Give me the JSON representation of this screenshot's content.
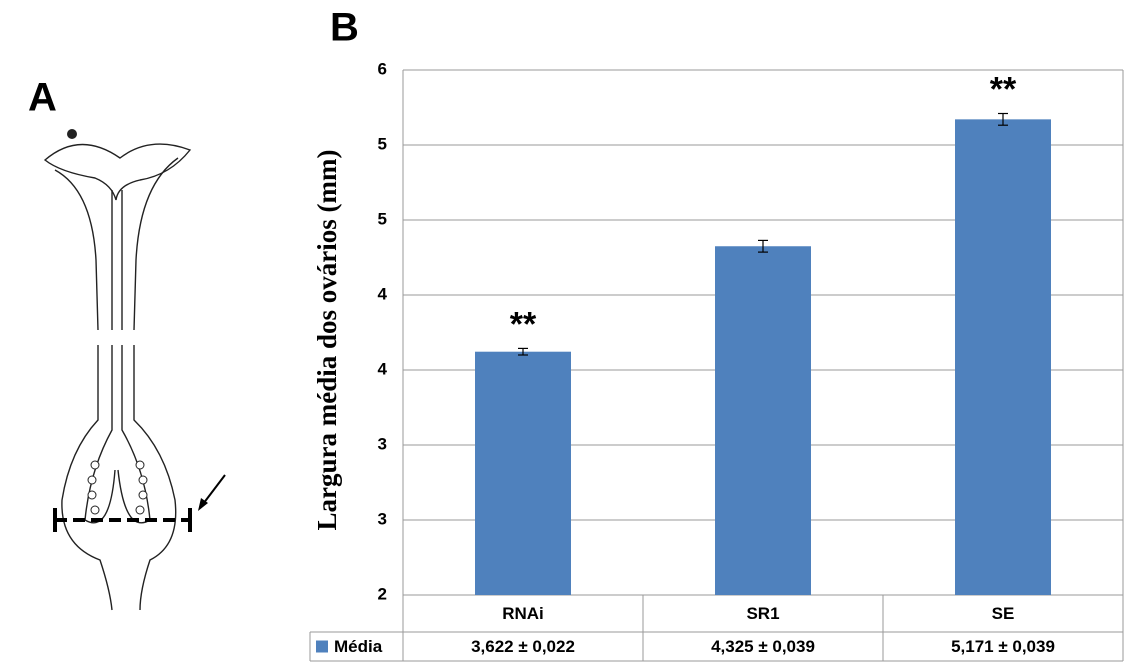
{
  "panel_a": {
    "label": "A"
  },
  "chart_data": {
    "type": "bar",
    "panel_label": "B",
    "y_label": "Largura média dos ovários (mm)",
    "categories": [
      "RNAi",
      "SR1",
      "SE"
    ],
    "series": [
      {
        "name": "Média",
        "color": "#4f81bd",
        "values": [
          3.622,
          4.325,
          5.171
        ],
        "errors": [
          0.022,
          0.039,
          0.039
        ],
        "value_labels": [
          "3,622 ± 0,022",
          "4,325 ± 0,039",
          "5,171 ± 0,039"
        ]
      }
    ],
    "value_annotations": [
      "**",
      null,
      "**"
    ],
    "ylim": [
      2,
      5.5
    ],
    "yticks": [
      2,
      {
        "value": 2.5,
        "label": "3"
      },
      3,
      {
        "value": 3.5,
        "label": "4"
      },
      4,
      {
        "value": 4.5,
        "label": "5"
      },
      5,
      {
        "value": 5.5,
        "label": "6"
      }
    ],
    "grid": true
  }
}
